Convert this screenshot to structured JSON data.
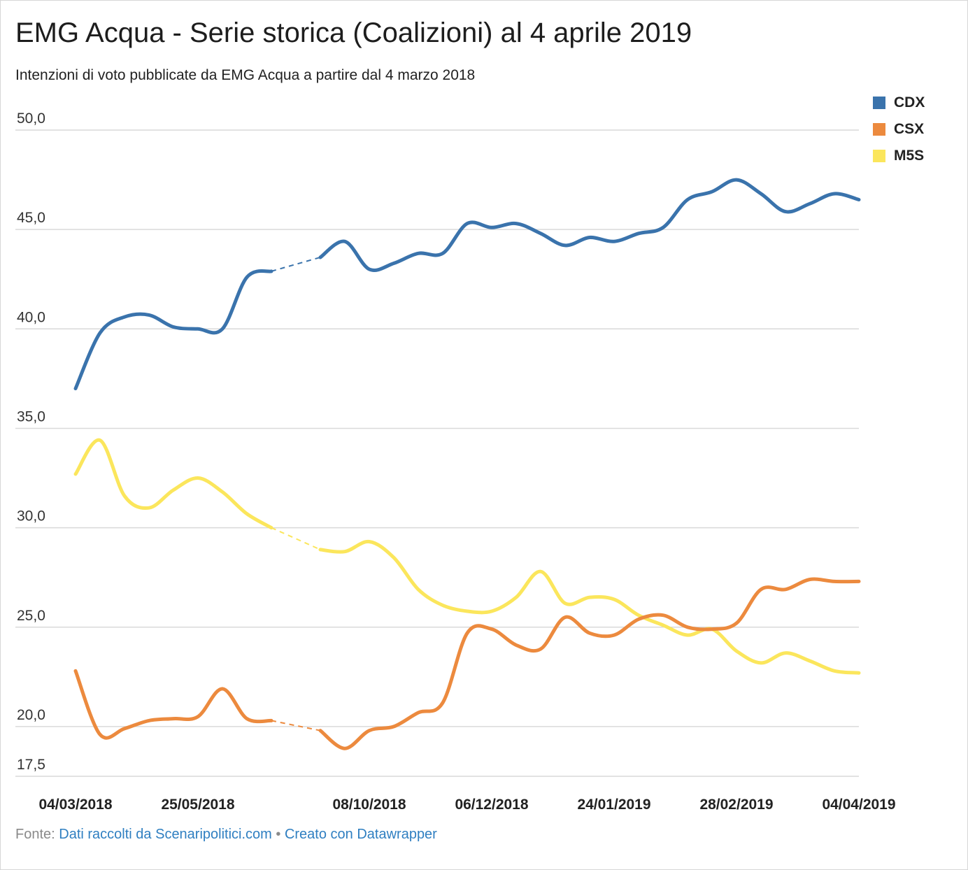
{
  "header": {
    "title": "EMG Acqua - Serie storica (Coalizioni) al 4 aprile 2019",
    "subtitle": "Intenzioni di voto pubblicate da EMG Acqua a partire dal 4 marzo 2018"
  },
  "footer": {
    "source_prefix": "Fonte: ",
    "source_text": "Dati raccolti da Scenaripolitici.com",
    "separator": " • ",
    "created_text": "Creato con Datawrapper"
  },
  "colors": {
    "CDX": "#3a73ac",
    "CSX": "#ec8a3e",
    "M5S": "#fbe65c",
    "grid": "#d9d9d9"
  },
  "chart_data": {
    "type": "line",
    "title": "EMG Acqua - Serie storica (Coalizioni) al 4 aprile 2019",
    "subtitle": "Intenzioni di voto pubblicate da EMG Acqua a partire dal 4 marzo 2018",
    "xlabel": "",
    "ylabel": "",
    "ylim": [
      17.5,
      50.0
    ],
    "yticks": [
      17.5,
      20.0,
      25.0,
      30.0,
      35.0,
      40.0,
      45.0,
      50.0
    ],
    "ytick_labels": [
      "17,5",
      "20,0",
      "25,0",
      "30,0",
      "35,0",
      "40,0",
      "45,0",
      "50,0"
    ],
    "x_ticks": [
      {
        "index": 0,
        "label": "04/03/2018"
      },
      {
        "index": 5,
        "label": "25/05/2018"
      },
      {
        "index": 12,
        "label": "08/10/2018"
      },
      {
        "index": 17,
        "label": "06/12/2018"
      },
      {
        "index": 22,
        "label": "24/01/2019"
      },
      {
        "index": 27,
        "label": "28/02/2019"
      },
      {
        "index": 32,
        "label": "04/04/2019"
      }
    ],
    "point_count": 33,
    "gap": {
      "after_index": 8,
      "before_index": 10
    },
    "legend_position": "top-right",
    "grid": true,
    "series": [
      {
        "name": "CDX",
        "values": [
          37.0,
          39.8,
          40.6,
          40.7,
          40.1,
          40.0,
          40.0,
          42.6,
          42.9,
          null,
          43.6,
          44.4,
          43.0,
          43.3,
          43.8,
          43.8,
          45.3,
          45.1,
          45.3,
          44.8,
          44.2,
          44.6,
          44.4,
          44.8,
          45.1,
          46.5,
          46.9,
          47.5,
          46.8,
          45.9,
          46.3,
          46.8,
          46.5
        ]
      },
      {
        "name": "CSX",
        "values": [
          22.8,
          19.6,
          19.9,
          20.3,
          20.4,
          20.5,
          21.9,
          20.4,
          20.3,
          null,
          19.8,
          18.9,
          19.8,
          20.0,
          20.7,
          21.2,
          24.7,
          24.9,
          24.1,
          23.9,
          25.5,
          24.7,
          24.6,
          25.4,
          25.6,
          25.0,
          24.9,
          25.2,
          26.9,
          26.9,
          27.4,
          27.3,
          27.3
        ]
      },
      {
        "name": "M5S",
        "values": [
          32.7,
          34.4,
          31.6,
          31.0,
          31.9,
          32.5,
          31.8,
          30.7,
          30.0,
          null,
          28.9,
          28.8,
          29.3,
          28.5,
          26.9,
          26.1,
          25.8,
          25.8,
          26.5,
          27.8,
          26.2,
          26.5,
          26.4,
          25.6,
          25.1,
          24.6,
          24.9,
          23.8,
          23.2,
          23.7,
          23.3,
          22.8,
          22.7
        ]
      }
    ]
  }
}
